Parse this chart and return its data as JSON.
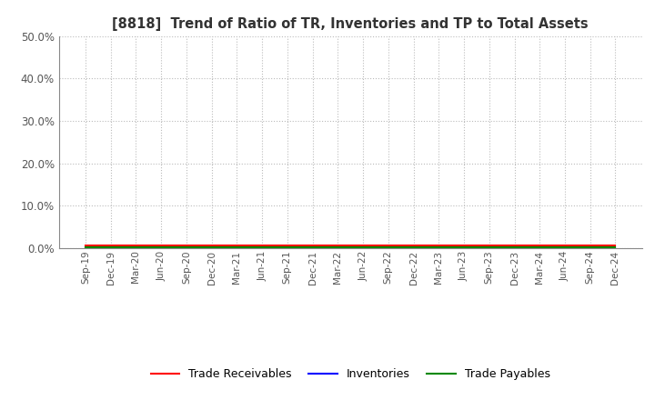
{
  "title": "[8818]  Trend of Ratio of TR, Inventories and TP to Total Assets",
  "x_labels": [
    "Sep-19",
    "Dec-19",
    "Mar-20",
    "Jun-20",
    "Sep-20",
    "Dec-20",
    "Mar-21",
    "Jun-21",
    "Sep-21",
    "Dec-21",
    "Mar-22",
    "Jun-22",
    "Sep-22",
    "Dec-22",
    "Mar-23",
    "Jun-23",
    "Sep-23",
    "Dec-23",
    "Mar-24",
    "Jun-24",
    "Sep-24",
    "Dec-24"
  ],
  "trade_receivables": [
    0.005,
    0.005,
    0.005,
    0.005,
    0.005,
    0.005,
    0.005,
    0.005,
    0.005,
    0.005,
    0.005,
    0.005,
    0.005,
    0.005,
    0.005,
    0.005,
    0.005,
    0.005,
    0.005,
    0.005,
    0.005,
    0.005
  ],
  "inventories": [
    0.002,
    0.002,
    0.002,
    0.002,
    0.002,
    0.002,
    0.002,
    0.002,
    0.002,
    0.002,
    0.002,
    0.002,
    0.002,
    0.002,
    0.002,
    0.002,
    0.002,
    0.002,
    0.002,
    0.002,
    0.002,
    0.002
  ],
  "trade_payables": [
    0.001,
    0.001,
    0.001,
    0.001,
    0.001,
    0.001,
    0.001,
    0.001,
    0.001,
    0.001,
    0.001,
    0.001,
    0.001,
    0.001,
    0.001,
    0.001,
    0.001,
    0.001,
    0.001,
    0.001,
    0.001,
    0.001
  ],
  "tr_color": "#ff0000",
  "inv_color": "#0000ff",
  "tp_color": "#008800",
  "ylim": [
    0.0,
    0.5
  ],
  "yticks": [
    0.0,
    0.1,
    0.2,
    0.3,
    0.4,
    0.5
  ],
  "background_color": "#ffffff",
  "grid_color": "#bbbbbb",
  "title_color": "#333333",
  "tick_color": "#555555"
}
